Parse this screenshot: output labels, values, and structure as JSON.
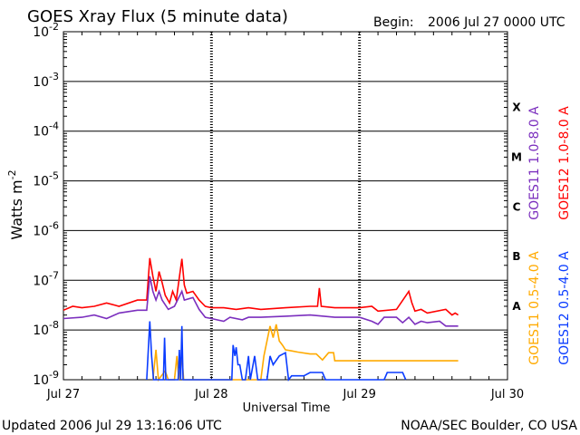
{
  "header": {
    "title": "GOES Xray Flux (5 minute data)",
    "begin_label": "Begin:",
    "begin_value": "2006 Jul 27 0000 UTC"
  },
  "footer": {
    "updated": "Updated 2006 Jul 29 13:16:06 UTC",
    "credit": "NOAA/SEC Boulder, CO USA"
  },
  "chart_data": {
    "type": "line",
    "title": "GOES Xray Flux (5 minute data)",
    "xlabel": "Universal Time",
    "ylabel": "Watts m-2",
    "ylabel_base": "Watts m",
    "ylabel_exp": "-2",
    "y_scale": "log",
    "ylim": [
      1e-09,
      0.01
    ],
    "xlim": [
      0,
      72
    ],
    "x_unit": "hours since 2006 Jul 27 0000 UTC",
    "x_ticks": [
      {
        "hour": 0,
        "label": "Jul 27"
      },
      {
        "hour": 24,
        "label": "Jul 28"
      },
      {
        "hour": 48,
        "label": "Jul 29"
      },
      {
        "hour": 72,
        "label": "Jul 30"
      }
    ],
    "y_ticks": [
      {
        "base": "10",
        "exp": "-2",
        "value": 0.01
      },
      {
        "base": "10",
        "exp": "-3",
        "value": 0.001
      },
      {
        "base": "10",
        "exp": "-4",
        "value": 0.0001
      },
      {
        "base": "10",
        "exp": "-5",
        "value": 1e-05
      },
      {
        "base": "10",
        "exp": "-6",
        "value": 1e-06
      },
      {
        "base": "10",
        "exp": "-7",
        "value": 1e-07
      },
      {
        "base": "10",
        "exp": "-8",
        "value": 1e-08
      },
      {
        "base": "10",
        "exp": "-9",
        "value": 1e-09
      }
    ],
    "flare_classes": [
      {
        "label": "X",
        "value": 0.0003
      },
      {
        "label": "M",
        "value": 3e-05
      },
      {
        "label": "C",
        "value": 3e-06
      },
      {
        "label": "B",
        "value": 3e-07
      },
      {
        "label": "A",
        "value": 3e-08
      }
    ],
    "grid": true,
    "legend_position": "right (vertical text)",
    "series": [
      {
        "name": "GOES12 1.0-8.0 A",
        "color": "#ff0000",
        "points": [
          [
            0,
            2.5e-08
          ],
          [
            1.5,
            3e-08
          ],
          [
            3,
            2.8e-08
          ],
          [
            5,
            3e-08
          ],
          [
            7,
            3.5e-08
          ],
          [
            9,
            3e-08
          ],
          [
            12,
            4e-08
          ],
          [
            13.5,
            4e-08
          ],
          [
            14,
            2.8e-07
          ],
          [
            14.5,
            1.2e-07
          ],
          [
            15,
            6e-08
          ],
          [
            15.5,
            1.5e-07
          ],
          [
            16,
            9e-08
          ],
          [
            16.5,
            5e-08
          ],
          [
            17.2,
            3.5e-08
          ],
          [
            17.7,
            6e-08
          ],
          [
            18.3,
            4e-08
          ],
          [
            19.2,
            2.7e-07
          ],
          [
            19.6,
            8e-08
          ],
          [
            20,
            5.5e-08
          ],
          [
            21,
            6e-08
          ],
          [
            22,
            4e-08
          ],
          [
            23,
            3e-08
          ],
          [
            24,
            2.8e-08
          ],
          [
            26,
            2.8e-08
          ],
          [
            28,
            2.6e-08
          ],
          [
            30,
            2.8e-08
          ],
          [
            32,
            2.6e-08
          ],
          [
            36,
            2.8e-08
          ],
          [
            40,
            3e-08
          ],
          [
            41.2,
            3e-08
          ],
          [
            41.5,
            7e-08
          ],
          [
            41.8,
            3e-08
          ],
          [
            44,
            2.8e-08
          ],
          [
            48,
            2.8e-08
          ],
          [
            50,
            3e-08
          ],
          [
            51,
            2.4e-08
          ],
          [
            54,
            2.6e-08
          ],
          [
            56,
            6e-08
          ],
          [
            56.5,
            3.5e-08
          ],
          [
            57,
            2.4e-08
          ],
          [
            58,
            2.6e-08
          ],
          [
            59,
            2.2e-08
          ],
          [
            62,
            2.6e-08
          ],
          [
            63,
            2e-08
          ],
          [
            63.5,
            2.2e-08
          ],
          [
            64,
            2e-08
          ]
        ]
      },
      {
        "name": "GOES11 1.0-8.0 A",
        "color": "#7b2fbe",
        "points": [
          [
            0,
            1.7e-08
          ],
          [
            3,
            1.8e-08
          ],
          [
            5,
            2e-08
          ],
          [
            7,
            1.7e-08
          ],
          [
            9,
            2.2e-08
          ],
          [
            12,
            2.5e-08
          ],
          [
            13.5,
            2.5e-08
          ],
          [
            14,
            1.2e-07
          ],
          [
            14.5,
            6e-08
          ],
          [
            15,
            4e-08
          ],
          [
            15.5,
            6e-08
          ],
          [
            16,
            4e-08
          ],
          [
            17,
            2.6e-08
          ],
          [
            18,
            3e-08
          ],
          [
            19.2,
            6e-08
          ],
          [
            19.6,
            4e-08
          ],
          [
            21,
            4.5e-08
          ],
          [
            22,
            2.6e-08
          ],
          [
            23,
            1.8e-08
          ],
          [
            24,
            1.7e-08
          ],
          [
            26,
            1.5e-08
          ],
          [
            27,
            1.8e-08
          ],
          [
            29,
            1.6e-08
          ],
          [
            30,
            1.8e-08
          ],
          [
            32,
            1.8e-08
          ],
          [
            36,
            1.9e-08
          ],
          [
            40,
            2e-08
          ],
          [
            44,
            1.8e-08
          ],
          [
            48,
            1.8e-08
          ],
          [
            50,
            1.5e-08
          ],
          [
            51,
            1.3e-08
          ],
          [
            52,
            1.8e-08
          ],
          [
            54,
            1.8e-08
          ],
          [
            55,
            1.4e-08
          ],
          [
            56,
            1.8e-08
          ],
          [
            57,
            1.3e-08
          ],
          [
            58,
            1.5e-08
          ],
          [
            59,
            1.4e-08
          ],
          [
            61,
            1.5e-08
          ],
          [
            62,
            1.2e-08
          ],
          [
            64,
            1.2e-08
          ]
        ]
      },
      {
        "name": "GOES11 0.5-4.0 A",
        "color": "#ffaa00",
        "points": [
          [
            14.5,
            1e-09
          ],
          [
            15,
            4e-09
          ],
          [
            15.4,
            1e-09
          ],
          [
            16.5,
            1.5e-09
          ],
          [
            17,
            1e-09
          ],
          [
            18,
            1e-09
          ],
          [
            18.4,
            3e-09
          ],
          [
            18.7,
            1e-09
          ],
          [
            19.2,
            3e-09
          ],
          [
            19.5,
            1e-09
          ],
          [
            32,
            1e-09
          ],
          [
            32.5,
            3e-09
          ],
          [
            33,
            6e-09
          ],
          [
            33.5,
            1.2e-08
          ],
          [
            34,
            7e-09
          ],
          [
            34.5,
            1.3e-08
          ],
          [
            35,
            6e-09
          ],
          [
            35.5,
            5e-09
          ],
          [
            36,
            4e-09
          ],
          [
            37,
            3.8e-09
          ],
          [
            38,
            3.6e-09
          ],
          [
            40,
            3.3e-09
          ],
          [
            41,
            3.3e-09
          ],
          [
            42,
            2.5e-09
          ],
          [
            43,
            3.5e-09
          ],
          [
            43.8,
            3.5e-09
          ],
          [
            44,
            2.4e-09
          ],
          [
            48,
            2.4e-09
          ],
          [
            52,
            2.4e-09
          ],
          [
            56,
            2.4e-09
          ],
          [
            60,
            2.4e-09
          ],
          [
            64,
            2.4e-09
          ]
        ]
      },
      {
        "name": "GOES12 0.5-4.0 A",
        "color": "#0a3cff",
        "points": [
          [
            13.5,
            1e-09
          ],
          [
            14,
            1.5e-08
          ],
          [
            14.3,
            3e-09
          ],
          [
            14.6,
            1e-09
          ],
          [
            16.2,
            1e-09
          ],
          [
            16.4,
            7e-09
          ],
          [
            16.6,
            1e-09
          ],
          [
            18.6,
            1e-09
          ],
          [
            18.8,
            4e-09
          ],
          [
            19,
            1e-09
          ],
          [
            19.2,
            1.2e-08
          ],
          [
            19.4,
            1e-09
          ],
          [
            27.3,
            1e-09
          ],
          [
            27.5,
            5e-09
          ],
          [
            27.8,
            3e-09
          ],
          [
            28,
            4.5e-09
          ],
          [
            28.3,
            2e-09
          ],
          [
            28.6,
            2e-09
          ],
          [
            29,
            1e-09
          ],
          [
            29.5,
            1e-09
          ],
          [
            30,
            3e-09
          ],
          [
            30.3,
            1e-09
          ],
          [
            31,
            3e-09
          ],
          [
            31.5,
            1e-09
          ],
          [
            33,
            1e-09
          ],
          [
            33.5,
            3e-09
          ],
          [
            34,
            2e-09
          ],
          [
            35,
            3e-09
          ],
          [
            36,
            3.5e-09
          ],
          [
            36.5,
            1e-09
          ],
          [
            37,
            1.2e-09
          ],
          [
            39,
            1.2e-09
          ],
          [
            40,
            1.4e-09
          ],
          [
            42,
            1.4e-09
          ],
          [
            42.5,
            1e-09
          ],
          [
            52,
            1e-09
          ],
          [
            52.5,
            1.4e-09
          ],
          [
            55,
            1.4e-09
          ],
          [
            55.5,
            1e-09
          ]
        ]
      }
    ]
  }
}
